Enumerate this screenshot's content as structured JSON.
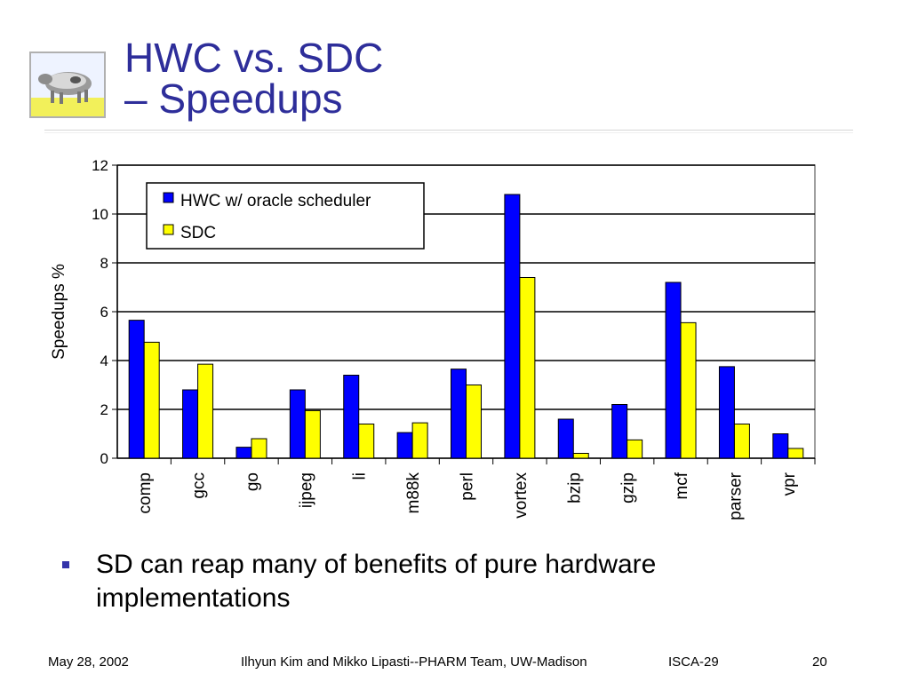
{
  "slide": {
    "title_line1": "HWC vs. SDC",
    "title_line2": "– Speedups",
    "bullet": "SD can reap many of benefits of pure hardware implementations",
    "logo_icon": "cow-logo-icon"
  },
  "footer": {
    "date": "May 28, 2002",
    "authors": "Ilhyun Kim and Mikko Lipasti--PHARM Team, UW-Madison",
    "conference": "ISCA-29",
    "page": "20"
  },
  "colors": {
    "title": "#2E2E9A",
    "hwc": "#0000FF",
    "sdc": "#FFFF00",
    "bullet": "#3333AA"
  },
  "chart_data": {
    "type": "bar",
    "ylabel": "Speedups %",
    "xlabel": "",
    "ylim": [
      0,
      12
    ],
    "yticks": [
      0,
      2,
      4,
      6,
      8,
      10,
      12
    ],
    "grid": true,
    "legend_position": "top-left",
    "categories": [
      "comp",
      "gcc",
      "go",
      "ijpeg",
      "li",
      "m88k",
      "perl",
      "vortex",
      "bzip",
      "gzip",
      "mcf",
      "parser",
      "vpr"
    ],
    "series": [
      {
        "name": "HWC w/ oracle scheduler",
        "color": "#0000FF",
        "values": [
          5.65,
          2.8,
          0.45,
          2.8,
          3.4,
          1.05,
          3.65,
          10.8,
          1.6,
          2.2,
          7.2,
          3.75,
          1.0
        ]
      },
      {
        "name": "SDC",
        "color": "#FFFF00",
        "values": [
          4.75,
          3.85,
          0.8,
          1.95,
          1.4,
          1.45,
          3.0,
          7.4,
          0.2,
          0.75,
          5.55,
          1.4,
          0.4
        ]
      }
    ]
  }
}
